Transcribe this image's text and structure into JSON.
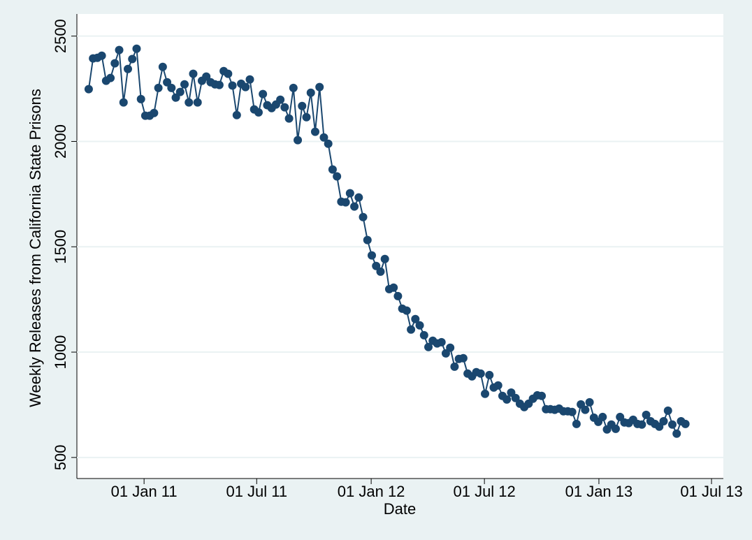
{
  "chart_data": {
    "type": "line",
    "markers": true,
    "color": "#1a476f",
    "grid": true,
    "y_label": "Weekly Releases from California State Prisons",
    "x_label": "Date",
    "ylim": [
      400,
      2605
    ],
    "yticks": [
      500,
      1000,
      1500,
      2000,
      2500
    ],
    "xlim": [
      "2010-09-15",
      "2013-07-20"
    ],
    "xticks": [
      {
        "value": "2011-01-01",
        "label": "01 Jan 11"
      },
      {
        "value": "2011-07-01",
        "label": "01 Jul 11"
      },
      {
        "value": "2012-01-01",
        "label": "01 Jan 12"
      },
      {
        "value": "2012-07-01",
        "label": "01 Jul 12"
      },
      {
        "value": "2013-01-01",
        "label": "01 Jan 13"
      },
      {
        "value": "2013-07-01",
        "label": "01 Jul 13"
      }
    ],
    "x": [
      "2010-10-04",
      "2010-10-11",
      "2010-10-18",
      "2010-10-25",
      "2010-11-01",
      "2010-11-08",
      "2010-11-15",
      "2010-11-22",
      "2010-11-29",
      "2010-12-06",
      "2010-12-13",
      "2010-12-20",
      "2010-12-27",
      "2011-01-03",
      "2011-01-10",
      "2011-01-17",
      "2011-01-24",
      "2011-01-31",
      "2011-02-07",
      "2011-02-14",
      "2011-02-21",
      "2011-02-28",
      "2011-03-07",
      "2011-03-14",
      "2011-03-21",
      "2011-03-28",
      "2011-04-04",
      "2011-04-11",
      "2011-04-18",
      "2011-04-25",
      "2011-05-02",
      "2011-05-09",
      "2011-05-16",
      "2011-05-23",
      "2011-05-30",
      "2011-06-06",
      "2011-06-13",
      "2011-06-20",
      "2011-06-27",
      "2011-07-04",
      "2011-07-11",
      "2011-07-18",
      "2011-07-25",
      "2011-08-01",
      "2011-08-08",
      "2011-08-15",
      "2011-08-22",
      "2011-08-29",
      "2011-09-05",
      "2011-09-12",
      "2011-09-19",
      "2011-09-26",
      "2011-10-03",
      "2011-10-10",
      "2011-10-17",
      "2011-10-24",
      "2011-10-31",
      "2011-11-07",
      "2011-11-14",
      "2011-11-21",
      "2011-11-28",
      "2011-12-05",
      "2011-12-12",
      "2011-12-19",
      "2011-12-26",
      "2012-01-02",
      "2012-01-09",
      "2012-01-16",
      "2012-01-23",
      "2012-01-30",
      "2012-02-06",
      "2012-02-13",
      "2012-02-20",
      "2012-02-27",
      "2012-03-05",
      "2012-03-12",
      "2012-03-19",
      "2012-03-26",
      "2012-04-02",
      "2012-04-09",
      "2012-04-16",
      "2012-04-23",
      "2012-04-30",
      "2012-05-07",
      "2012-05-14",
      "2012-05-21",
      "2012-05-28",
      "2012-06-04",
      "2012-06-11",
      "2012-06-18",
      "2012-06-25",
      "2012-07-02",
      "2012-07-09",
      "2012-07-16",
      "2012-07-23",
      "2012-07-30",
      "2012-08-06",
      "2012-08-13",
      "2012-08-20",
      "2012-08-27",
      "2012-09-03",
      "2012-09-10",
      "2012-09-17",
      "2012-09-24",
      "2012-10-01",
      "2012-10-08",
      "2012-10-15",
      "2012-10-22",
      "2012-10-29",
      "2012-11-05",
      "2012-11-12",
      "2012-11-19",
      "2012-11-26",
      "2012-12-03",
      "2012-12-10",
      "2012-12-17",
      "2012-12-24",
      "2012-12-31",
      "2013-01-07",
      "2013-01-14",
      "2013-01-21",
      "2013-01-28",
      "2013-02-04",
      "2013-02-11",
      "2013-02-18",
      "2013-02-25",
      "2013-03-04",
      "2013-03-11",
      "2013-03-18",
      "2013-03-25",
      "2013-04-01",
      "2013-04-08",
      "2013-04-15",
      "2013-04-22",
      "2013-04-29",
      "2013-05-06",
      "2013-05-13",
      "2013-05-20"
    ],
    "values": [
      2248,
      2394,
      2397,
      2407,
      2288,
      2301,
      2371,
      2434,
      2185,
      2344,
      2391,
      2440,
      2201,
      2122,
      2122,
      2135,
      2254,
      2354,
      2281,
      2254,
      2208,
      2235,
      2271,
      2185,
      2321,
      2185,
      2288,
      2308,
      2281,
      2271,
      2268,
      2334,
      2321,
      2265,
      2125,
      2274,
      2258,
      2294,
      2152,
      2138,
      2225,
      2172,
      2158,
      2175,
      2198,
      2162,
      2109,
      2254,
      2006,
      2168,
      2115,
      2231,
      2046,
      2258,
      2019,
      1989,
      1867,
      1834,
      1714,
      1711,
      1754,
      1691,
      1734,
      1641,
      1532,
      1459,
      1409,
      1382,
      1442,
      1299,
      1306,
      1266,
      1206,
      1197,
      1107,
      1157,
      1127,
      1080,
      1024,
      1054,
      1041,
      1047,
      994,
      1021,
      931,
      968,
      971,
      898,
      885,
      905,
      898,
      802,
      891,
      832,
      842,
      792,
      775,
      808,
      782,
      755,
      739,
      755,
      779,
      795,
      792,
      729,
      729,
      726,
      732,
      719,
      719,
      716,
      659,
      752,
      726,
      762,
      689,
      669,
      692,
      633,
      656,
      636,
      692,
      666,
      663,
      679,
      659,
      656,
      702,
      672,
      659,
      646,
      672,
      722,
      656,
      613,
      672,
      659
    ]
  }
}
